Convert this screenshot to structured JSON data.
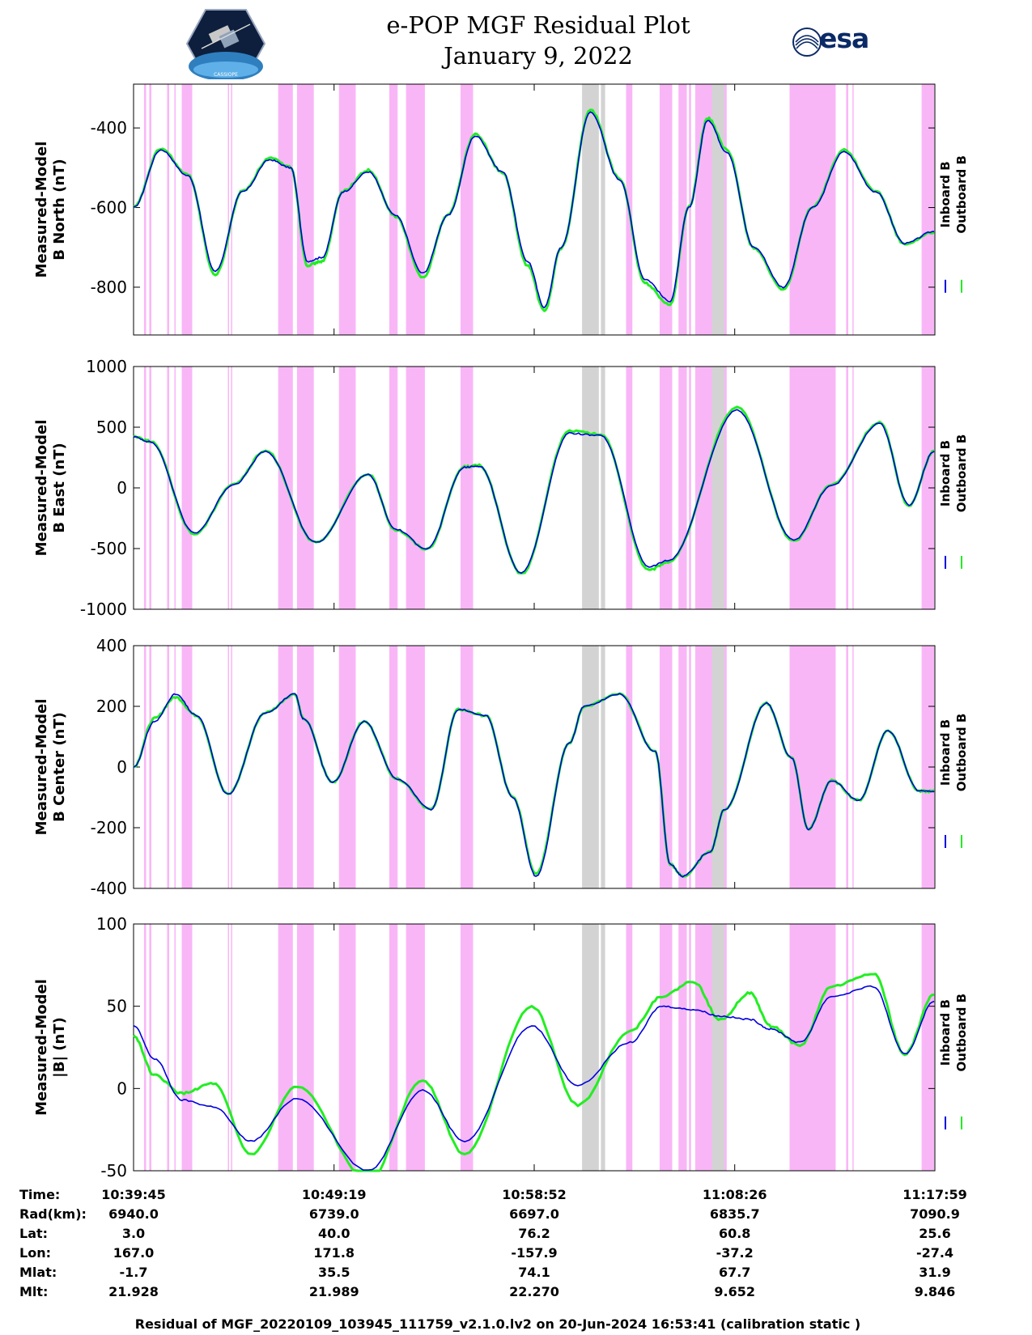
{
  "header": {
    "title_line1": "e-POP MGF Residual Plot",
    "title_line2": "January 9, 2022",
    "logo_left_text": "CASSIOPE",
    "logo_right_text": "esa"
  },
  "colors": {
    "inboard": "#0000dd",
    "outboard": "#22ee22",
    "shade_pink": "#f9b6f7",
    "shade_gray": "#d3d3d3"
  },
  "chart_data": [
    {
      "type": "line",
      "ylabel_line1": "Measured-Model",
      "ylabel_line2": "B North (nT)",
      "ylim": [
        -920,
        -290
      ],
      "yticks": [
        -800,
        -600,
        -400
      ],
      "ytick_labels": [
        "-800",
        "-600",
        "-400"
      ],
      "legend": [
        "Inboard B",
        "Outboard B"
      ],
      "x_minutes": [
        0,
        1.3,
        2.6,
        3.9,
        5.2,
        6.5,
        7.5,
        8.3,
        9.0,
        10.0,
        11.2,
        12.5,
        13.8,
        15.0,
        16.3,
        17.6,
        18.8,
        19.6,
        20.4,
        21.8,
        23.2,
        24.4,
        25.6,
        26.5,
        27.4,
        28.3,
        29.6,
        31.0,
        32.4,
        33.9,
        35.4,
        36.8,
        38.2
      ],
      "series": [
        {
          "name": "Inboard B",
          "values": [
            -600,
            -455,
            -520,
            -760,
            -560,
            -480,
            -500,
            -735,
            -725,
            -560,
            -510,
            -620,
            -765,
            -620,
            -420,
            -510,
            -735,
            -850,
            -700,
            -360,
            -530,
            -780,
            -835,
            -600,
            -380,
            -460,
            -700,
            -800,
            -600,
            -460,
            -560,
            -690,
            -660
          ]
        },
        {
          "name": "Outboard B",
          "values": [
            -600,
            -452,
            -518,
            -770,
            -558,
            -476,
            -498,
            -745,
            -735,
            -558,
            -506,
            -622,
            -775,
            -618,
            -416,
            -512,
            -745,
            -860,
            -702,
            -355,
            -528,
            -790,
            -845,
            -598,
            -375,
            -455,
            -702,
            -808,
            -598,
            -455,
            -558,
            -692,
            -662
          ]
        }
      ]
    },
    {
      "type": "line",
      "ylabel_line1": "Measured-Model",
      "ylabel_line2": "B East (nT)",
      "ylim": [
        -1000,
        1000
      ],
      "yticks": [
        -1000,
        -500,
        0,
        500,
        1000
      ],
      "ytick_labels": [
        "-1000",
        "-500",
        "0",
        "500",
        "1000"
      ],
      "legend": [
        "Inboard B",
        "Outboard B"
      ],
      "x_minutes": [
        0,
        0.8,
        2.9,
        4.8,
        6.3,
        8.7,
        11.2,
        12.5,
        14.0,
        15.8,
        16.5,
        18.5,
        20.8,
        22.3,
        24.6,
        25.5,
        28.8,
        31.5,
        33.3,
        35.6,
        37.0,
        38.2
      ],
      "series": [
        {
          "name": "Inboard B",
          "values": [
            420,
            380,
            -370,
            30,
            300,
            -450,
            110,
            -340,
            -500,
            170,
            180,
            -700,
            450,
            430,
            -650,
            -600,
            640,
            -430,
            20,
            530,
            -140,
            300
          ]
        },
        {
          "name": "Outboard B",
          "values": [
            425,
            385,
            -380,
            35,
            305,
            -455,
            115,
            -345,
            -505,
            175,
            185,
            -710,
            470,
            440,
            -680,
            -610,
            660,
            -440,
            25,
            540,
            -145,
            305
          ]
        }
      ]
    },
    {
      "type": "line",
      "ylabel_line1": "Measured-Model",
      "ylabel_line2": "B Center (nT)",
      "ylim": [
        -400,
        400
      ],
      "yticks": [
        -400,
        -200,
        0,
        200,
        400
      ],
      "ytick_labels": [
        "-400",
        "-200",
        "0",
        "200",
        "400"
      ],
      "legend": [
        "Inboard B",
        "Outboard B"
      ],
      "x_minutes": [
        0,
        1.0,
        2.0,
        3.0,
        4.5,
        6.3,
        7.7,
        8.1,
        9.5,
        11.0,
        12.6,
        14.2,
        15.5,
        16.8,
        18.1,
        19.2,
        20.8,
        21.5,
        23.2,
        24.9,
        25.6,
        26.2,
        27.5,
        28.2,
        30.2,
        31.4,
        32.2,
        33.3,
        34.6,
        36.0,
        37.5,
        38.2
      ],
      "series": [
        {
          "name": "Inboard B",
          "values": [
            0,
            150,
            240,
            170,
            -90,
            180,
            240,
            160,
            -50,
            150,
            -40,
            -140,
            190,
            170,
            -100,
            -360,
            80,
            200,
            240,
            50,
            -320,
            -360,
            -280,
            -140,
            210,
            30,
            -205,
            -45,
            -110,
            120,
            -80,
            -80
          ]
        },
        {
          "name": "Outboard B",
          "values": [
            0,
            160,
            230,
            170,
            -90,
            180,
            240,
            160,
            -50,
            150,
            -40,
            -140,
            190,
            170,
            -100,
            -350,
            80,
            200,
            240,
            50,
            -320,
            -360,
            -280,
            -140,
            210,
            30,
            -205,
            -45,
            -110,
            120,
            -80,
            -80
          ]
        }
      ]
    },
    {
      "type": "line",
      "ylabel_line1": "Measured-Model",
      "ylabel_line2": "|B| (nT)",
      "ylim": [
        -50,
        100
      ],
      "yticks": [
        -50,
        0,
        50,
        100
      ],
      "ytick_labels": [
        "-50",
        "0",
        "50",
        "100"
      ],
      "legend": [
        "Inboard B",
        "Outboard B"
      ],
      "x_minutes": [
        0,
        1.0,
        2.3,
        3.8,
        5.6,
        7.8,
        11.2,
        13.8,
        15.8,
        19.0,
        21.2,
        23.7,
        25.2,
        26.7,
        28.0,
        29.4,
        30.4,
        31.8,
        33.3,
        35.3,
        36.8,
        38.2
      ],
      "series": [
        {
          "name": "Inboard B",
          "values": [
            38,
            18,
            -7,
            -11,
            -32,
            -6,
            -50,
            -1,
            -32,
            38,
            2,
            28,
            50,
            48,
            44,
            42,
            36,
            28,
            56,
            62,
            21,
            53
          ]
        },
        {
          "name": "Outboard B",
          "values": [
            32,
            8,
            -3,
            3,
            -40,
            1,
            -56,
            5,
            -40,
            50,
            -10,
            35,
            56,
            65,
            42,
            58,
            38,
            26,
            62,
            70,
            21,
            57
          ]
        }
      ]
    }
  ],
  "shaded_regions": {
    "pink": [
      [
        0.5,
        0.6
      ],
      [
        0.75,
        0.85
      ],
      [
        1.6,
        1.7
      ],
      [
        1.95,
        2.0
      ],
      [
        2.3,
        2.8
      ],
      [
        4.5,
        4.55
      ],
      [
        4.65,
        4.7
      ],
      [
        6.9,
        7.6
      ],
      [
        7.8,
        8.6
      ],
      [
        9.8,
        10.6
      ],
      [
        12.2,
        12.6
      ],
      [
        13.0,
        13.9
      ],
      [
        15.6,
        16.2
      ],
      [
        23.5,
        23.8
      ],
      [
        25.1,
        25.7
      ],
      [
        26.0,
        26.4
      ],
      [
        26.5,
        26.6
      ],
      [
        26.8,
        28.3
      ],
      [
        31.3,
        33.5
      ],
      [
        34.0,
        34.1
      ],
      [
        34.3,
        34.35
      ],
      [
        37.6,
        38.2
      ]
    ],
    "gray": [
      [
        21.4,
        22.2
      ],
      [
        22.3,
        22.5
      ],
      [
        27.6,
        28.2
      ]
    ]
  },
  "info_table": {
    "labels": [
      "Time:",
      "Rad(km):",
      "Lat:",
      "Lon:",
      "Mlat:",
      "Mlt:"
    ],
    "columns": [
      [
        "10:39:45",
        "6940.0",
        "3.0",
        "167.0",
        "-1.7",
        "21.928"
      ],
      [
        "10:49:19",
        "6739.0",
        "40.0",
        "171.8",
        "35.5",
        "21.989"
      ],
      [
        "10:58:52",
        "6697.0",
        "76.2",
        "-157.9",
        "74.1",
        "22.270"
      ],
      [
        "11:08:26",
        "6835.7",
        "60.8",
        "-37.2",
        "67.7",
        "9.652"
      ],
      [
        "11:17:59",
        "7090.9",
        "25.6",
        "-27.4",
        "31.9",
        "9.846"
      ]
    ]
  },
  "footer": "Residual of MGF_20220109_103945_111759_v2.1.0.lv2 on 20-Jun-2024 16:53:41 (calibration static )"
}
